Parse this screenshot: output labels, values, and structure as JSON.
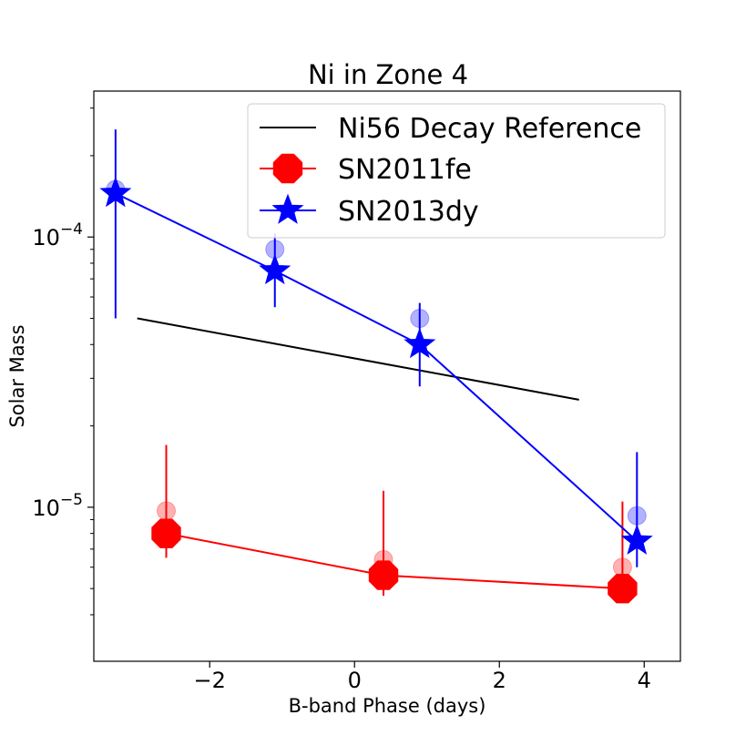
{
  "chart_data": {
    "type": "line",
    "title": "Ni in Zone 4",
    "xlabel": "B-band Phase (days)",
    "ylabel": "Solar Mass",
    "xlim": [
      -3.6,
      4.5
    ],
    "ylim_log10": [
      -5.57,
      -3.46
    ],
    "yscale": "log",
    "grid": false,
    "legend_position": "top-right",
    "x_ticks": [
      {
        "value": -2,
        "label": "−2"
      },
      {
        "value": 0,
        "label": "0"
      },
      {
        "value": 2,
        "label": "2"
      },
      {
        "value": 4,
        "label": "4"
      }
    ],
    "y_major_ticks": [
      {
        "value": 1e-05,
        "base": "10",
        "exp": "−5"
      },
      {
        "value": 0.0001,
        "base": "10",
        "exp": "−4"
      }
    ],
    "y_minor_ticks": [
      4e-06,
      5e-06,
      6e-06,
      7e-06,
      8e-06,
      9e-06,
      2e-05,
      3e-05,
      4e-05,
      5e-05,
      6e-05,
      7e-05,
      8e-05,
      9e-05,
      0.0002,
      0.0003
    ],
    "series": [
      {
        "name": "Ni56 Decay Reference",
        "color": "#000000",
        "marker": "none",
        "points": [
          {
            "x": -3.0,
            "y": 5e-05
          },
          {
            "x": 3.1,
            "y": 2.5e-05
          }
        ]
      },
      {
        "name": "SN2011fe",
        "color": "#ff0000",
        "marker": "octagon",
        "points": [
          {
            "x": -2.6,
            "y": 8e-06,
            "err_lo": 6.5e-06,
            "err_hi": 1.7e-05
          },
          {
            "x": 0.4,
            "y": 5.6e-06,
            "err_lo": 4.7e-06,
            "err_hi": 1.15e-05
          },
          {
            "x": 3.7,
            "y": 5e-06,
            "err_lo": 4.5e-06,
            "err_hi": 1.05e-05
          }
        ],
        "faint_points": [
          {
            "x": -2.6,
            "y": 9.7e-06
          },
          {
            "x": 0.4,
            "y": 6.4e-06
          },
          {
            "x": 3.7,
            "y": 6e-06
          }
        ]
      },
      {
        "name": "SN2013dy",
        "color": "#0000ff",
        "marker": "star",
        "points": [
          {
            "x": -3.3,
            "y": 0.000145,
            "err_lo": 5e-05,
            "err_hi": 0.00025
          },
          {
            "x": -1.1,
            "y": 7.5e-05,
            "err_lo": 5.5e-05,
            "err_hi": 0.000103
          },
          {
            "x": 0.9,
            "y": 4e-05,
            "err_lo": 2.8e-05,
            "err_hi": 5.7e-05
          },
          {
            "x": 3.9,
            "y": 7.5e-06,
            "err_lo": 6e-06,
            "err_hi": 1.6e-05
          }
        ],
        "faint_points": [
          {
            "x": -3.3,
            "y": 0.00015
          },
          {
            "x": -1.1,
            "y": 9e-05
          },
          {
            "x": 0.9,
            "y": 5e-05
          },
          {
            "x": 3.9,
            "y": 9.3e-06
          }
        ]
      }
    ]
  }
}
